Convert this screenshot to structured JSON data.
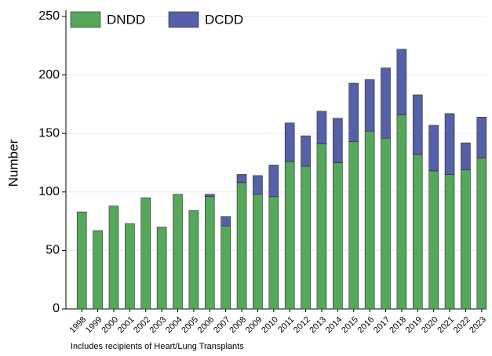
{
  "chart_data": {
    "type": "stacked_bar",
    "categories": [
      "1998",
      "1999",
      "2000",
      "2001",
      "2002",
      "2003",
      "2004",
      "2005",
      "2006",
      "2007",
      "2008",
      "2009",
      "2010",
      "2011",
      "2012",
      "2013",
      "2014",
      "2015",
      "2016",
      "2017",
      "2018",
      "2019",
      "2020",
      "2021",
      "2022",
      "2023"
    ],
    "series": [
      {
        "name": "DNDD",
        "color": "#55a85a",
        "values": [
          83,
          67,
          88,
          73,
          95,
          70,
          98,
          84,
          96,
          71,
          108,
          98,
          96,
          126,
          122,
          141,
          125,
          143,
          152,
          146,
          166,
          132,
          118,
          115,
          119,
          129
        ]
      },
      {
        "name": "DCDD",
        "color": "#5560a8",
        "values": [
          0,
          0,
          0,
          0,
          0,
          0,
          0,
          0,
          2,
          8,
          7,
          16,
          27,
          33,
          26,
          28,
          38,
          50,
          44,
          60,
          56,
          51,
          39,
          52,
          23,
          35
        ]
      }
    ],
    "ylabel": "Number",
    "ylim": [
      0,
      250
    ],
    "yticks": [
      0,
      50,
      100,
      150,
      200,
      250
    ],
    "grid": true,
    "legend": "top-left",
    "note": "Includes recipients of Heart/Lung Transplants"
  }
}
